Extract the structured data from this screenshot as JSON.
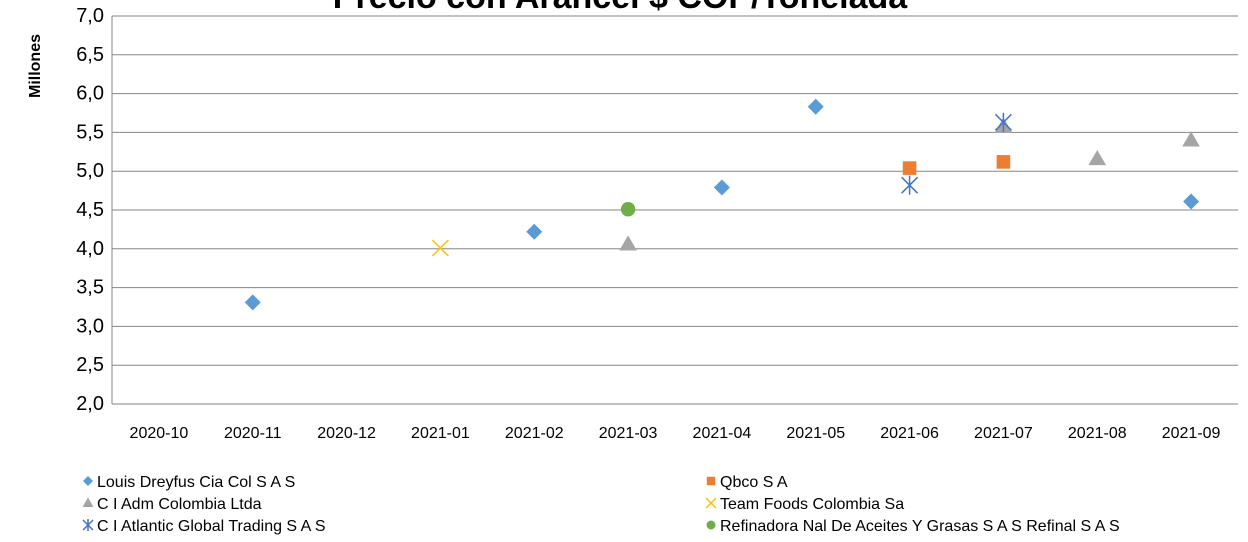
{
  "chart_data": {
    "type": "scatter",
    "title": "Precio con Arancel $ COP/Tonelada",
    "y_label": "Millones",
    "categories": [
      "2020-10",
      "2020-11",
      "2020-12",
      "2021-01",
      "2021-02",
      "2021-03",
      "2021-04",
      "2021-05",
      "2021-06",
      "2021-07",
      "2021-08",
      "2021-09"
    ],
    "series": [
      {
        "name": "Louis Dreyfus Cia Col S A S",
        "color": "#5b9bd5",
        "marker": "diamond",
        "values": [
          null,
          3.31,
          null,
          null,
          4.22,
          null,
          4.79,
          5.83,
          null,
          null,
          null,
          4.61
        ]
      },
      {
        "name": "Qbco S A",
        "color": "#ed7d31",
        "marker": "square",
        "values": [
          null,
          null,
          null,
          null,
          null,
          null,
          null,
          null,
          5.04,
          5.12,
          null,
          null
        ]
      },
      {
        "name": "C I Adm Colombia Ltda",
        "color": "#a5a5a5",
        "marker": "triangle",
        "values": [
          null,
          null,
          null,
          null,
          null,
          4.06,
          null,
          null,
          null,
          5.58,
          5.16,
          5.4
        ]
      },
      {
        "name": "Team Foods Colombia Sa",
        "color": "#ffc000",
        "marker": "x",
        "values": [
          null,
          null,
          null,
          4.01,
          null,
          null,
          null,
          null,
          null,
          null,
          null,
          null
        ]
      },
      {
        "name": "C I Atlantic Global Trading S A S",
        "color": "#4472c4",
        "marker": "star",
        "values": [
          null,
          null,
          null,
          null,
          null,
          null,
          null,
          null,
          4.82,
          5.63,
          null,
          null
        ]
      },
      {
        "name": "Refinadora Nal De Aceites Y Grasas S A S Refinal S A S",
        "color": "#70ad47",
        "marker": "circle",
        "values": [
          null,
          null,
          null,
          null,
          null,
          4.51,
          null,
          null,
          null,
          null,
          null,
          null
        ]
      }
    ],
    "ylim": [
      2,
      7
    ],
    "yticks": [
      {
        "value": 2,
        "label": "2,0"
      },
      {
        "value": 2.5,
        "label": "2,5"
      },
      {
        "value": 3,
        "label": "3,0"
      },
      {
        "value": 3.5,
        "label": "3,5"
      },
      {
        "value": 4,
        "label": "4,0"
      },
      {
        "value": 4.5,
        "label": "4,5"
      },
      {
        "value": 5,
        "label": "5,0"
      },
      {
        "value": 5.5,
        "label": "5,5"
      },
      {
        "value": 6,
        "label": "6,0"
      },
      {
        "value": 6.5,
        "label": "6,5"
      },
      {
        "value": 7,
        "label": "7,0"
      }
    ],
    "grid": true,
    "legend": "bottom"
  }
}
